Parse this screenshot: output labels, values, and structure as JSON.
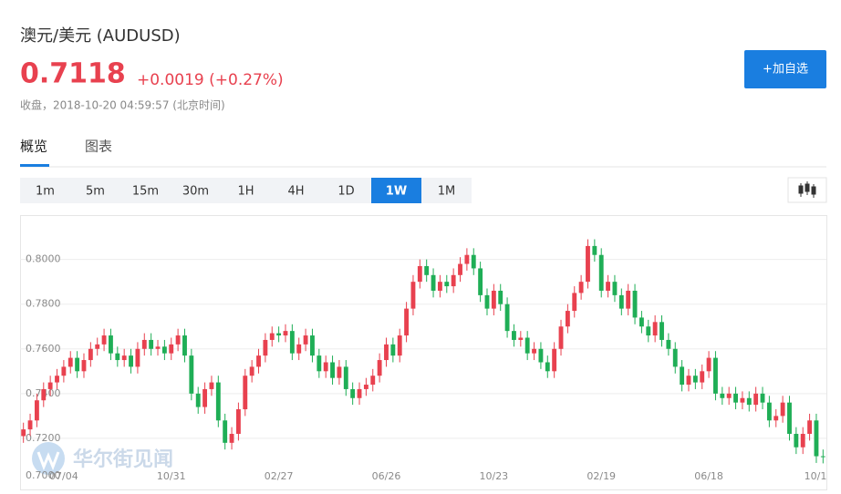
{
  "header": {
    "title": "澳元/美元 (AUDUSD)",
    "price": "0.7118",
    "change": "+0.0019 (+0.27%)",
    "status": "收盘，2018-10-20 04:59:57 (北京时间)",
    "watch_button": "+加自选"
  },
  "tabs": [
    "概览",
    "图表"
  ],
  "active_tab": 0,
  "intervals": [
    "1m",
    "5m",
    "15m",
    "30m",
    "1H",
    "4H",
    "1D",
    "1W",
    "1M"
  ],
  "active_interval": 7,
  "chart_data": {
    "type": "candlestick",
    "watermark": "华尔街见闻",
    "categories": [
      null,
      null,
      null,
      null,
      null,
      null,
      "07/04",
      null,
      null,
      null,
      null,
      null,
      null,
      null,
      null,
      null,
      null,
      null,
      null,
      null,
      null,
      null,
      "10/31",
      null,
      null,
      null,
      null,
      null,
      null,
      null,
      null,
      null,
      null,
      null,
      null,
      null,
      null,
      null,
      "02/27",
      null,
      null,
      null,
      null,
      null,
      null,
      null,
      null,
      null,
      null,
      null,
      null,
      null,
      null,
      null,
      "06/26",
      null,
      null,
      null,
      null,
      null,
      null,
      null,
      null,
      null,
      null,
      null,
      null,
      null,
      null,
      null,
      "10/23",
      null,
      null,
      null,
      null,
      null,
      null,
      null,
      null,
      null,
      null,
      null,
      null,
      null,
      null,
      null,
      "02/19",
      null,
      null,
      null,
      null,
      null,
      null,
      null,
      null,
      null,
      null,
      null,
      null,
      null,
      null,
      null,
      "06/18",
      null,
      null,
      null,
      null,
      null,
      null,
      null,
      null,
      null,
      null,
      null,
      null,
      null,
      null,
      null,
      "10/1",
      null
    ],
    "open": [
      0.721,
      0.724,
      0.728,
      0.737,
      0.742,
      0.745,
      0.748,
      0.752,
      0.756,
      0.75,
      0.755,
      0.76,
      0.762,
      0.766,
      0.758,
      0.755,
      0.757,
      0.752,
      0.76,
      0.764,
      0.76,
      0.761,
      0.758,
      0.762,
      0.766,
      0.757,
      0.74,
      0.734,
      0.742,
      0.745,
      0.728,
      0.718,
      0.722,
      0.733,
      0.748,
      0.752,
      0.757,
      0.764,
      0.767,
      0.766,
      0.768,
      0.758,
      0.762,
      0.766,
      0.757,
      0.75,
      0.754,
      0.747,
      0.752,
      0.742,
      0.738,
      0.742,
      0.744,
      0.748,
      0.755,
      0.762,
      0.757,
      0.766,
      0.778,
      0.79,
      0.797,
      0.793,
      0.786,
      0.79,
      0.788,
      0.793,
      0.798,
      0.802,
      0.796,
      0.784,
      0.778,
      0.786,
      0.78,
      0.768,
      0.764,
      0.765,
      0.758,
      0.76,
      0.754,
      0.75,
      0.76,
      0.77,
      0.777,
      0.785,
      0.79,
      0.806,
      0.802,
      0.786,
      0.79,
      0.784,
      0.778,
      0.786,
      0.774,
      0.77,
      0.766,
      0.772,
      0.764,
      0.76,
      0.752,
      0.744,
      0.748,
      0.745,
      0.75,
      0.756,
      0.74,
      0.738,
      0.74,
      0.736,
      0.738,
      0.735,
      0.74,
      0.736,
      0.728,
      0.73,
      0.736,
      0.722,
      0.716,
      0.722,
      0.728,
      0.712
    ],
    "high": [
      0.727,
      0.731,
      0.74,
      0.745,
      0.748,
      0.751,
      0.755,
      0.759,
      0.759,
      0.758,
      0.763,
      0.765,
      0.769,
      0.769,
      0.761,
      0.76,
      0.76,
      0.763,
      0.767,
      0.767,
      0.764,
      0.764,
      0.765,
      0.769,
      0.769,
      0.76,
      0.743,
      0.745,
      0.748,
      0.748,
      0.731,
      0.725,
      0.736,
      0.751,
      0.755,
      0.76,
      0.767,
      0.77,
      0.77,
      0.771,
      0.771,
      0.765,
      0.769,
      0.769,
      0.76,
      0.757,
      0.757,
      0.755,
      0.755,
      0.745,
      0.745,
      0.747,
      0.751,
      0.758,
      0.765,
      0.765,
      0.769,
      0.781,
      0.793,
      0.8,
      0.8,
      0.796,
      0.793,
      0.793,
      0.796,
      0.801,
      0.805,
      0.805,
      0.799,
      0.787,
      0.789,
      0.789,
      0.783,
      0.771,
      0.768,
      0.768,
      0.763,
      0.763,
      0.757,
      0.763,
      0.773,
      0.78,
      0.788,
      0.793,
      0.809,
      0.809,
      0.805,
      0.793,
      0.793,
      0.787,
      0.789,
      0.789,
      0.777,
      0.773,
      0.775,
      0.775,
      0.767,
      0.763,
      0.755,
      0.751,
      0.751,
      0.753,
      0.759,
      0.759,
      0.743,
      0.743,
      0.743,
      0.741,
      0.741,
      0.743,
      0.743,
      0.739,
      0.733,
      0.739,
      0.739,
      0.725,
      0.725,
      0.731,
      0.731,
      0.715
    ],
    "low": [
      0.718,
      0.721,
      0.725,
      0.734,
      0.739,
      0.742,
      0.745,
      0.749,
      0.747,
      0.747,
      0.752,
      0.757,
      0.759,
      0.755,
      0.752,
      0.752,
      0.749,
      0.749,
      0.757,
      0.757,
      0.757,
      0.755,
      0.755,
      0.759,
      0.754,
      0.737,
      0.731,
      0.731,
      0.739,
      0.725,
      0.715,
      0.715,
      0.719,
      0.73,
      0.745,
      0.749,
      0.754,
      0.761,
      0.763,
      0.763,
      0.755,
      0.755,
      0.759,
      0.754,
      0.747,
      0.747,
      0.744,
      0.744,
      0.739,
      0.735,
      0.735,
      0.739,
      0.741,
      0.745,
      0.752,
      0.754,
      0.754,
      0.763,
      0.775,
      0.787,
      0.79,
      0.783,
      0.783,
      0.785,
      0.785,
      0.79,
      0.795,
      0.793,
      0.781,
      0.775,
      0.775,
      0.777,
      0.765,
      0.761,
      0.761,
      0.755,
      0.755,
      0.751,
      0.747,
      0.747,
      0.757,
      0.767,
      0.774,
      0.782,
      0.787,
      0.799,
      0.783,
      0.783,
      0.781,
      0.775,
      0.775,
      0.771,
      0.767,
      0.763,
      0.763,
      0.761,
      0.757,
      0.749,
      0.741,
      0.741,
      0.742,
      0.742,
      0.747,
      0.737,
      0.735,
      0.735,
      0.733,
      0.733,
      0.732,
      0.732,
      0.733,
      0.725,
      0.725,
      0.727,
      0.719,
      0.713,
      0.713,
      0.719,
      0.709,
      0.7088
    ],
    "close": [
      0.724,
      0.728,
      0.737,
      0.742,
      0.745,
      0.748,
      0.752,
      0.756,
      0.75,
      0.755,
      0.76,
      0.762,
      0.766,
      0.758,
      0.755,
      0.757,
      0.752,
      0.76,
      0.764,
      0.76,
      0.761,
      0.758,
      0.762,
      0.766,
      0.757,
      0.74,
      0.734,
      0.742,
      0.745,
      0.728,
      0.718,
      0.722,
      0.733,
      0.748,
      0.752,
      0.757,
      0.764,
      0.767,
      0.766,
      0.768,
      0.758,
      0.762,
      0.766,
      0.757,
      0.75,
      0.754,
      0.747,
      0.752,
      0.742,
      0.738,
      0.742,
      0.744,
      0.748,
      0.755,
      0.762,
      0.757,
      0.766,
      0.778,
      0.79,
      0.797,
      0.793,
      0.786,
      0.79,
      0.788,
      0.793,
      0.798,
      0.802,
      0.796,
      0.784,
      0.778,
      0.786,
      0.78,
      0.768,
      0.764,
      0.765,
      0.758,
      0.76,
      0.754,
      0.75,
      0.76,
      0.77,
      0.777,
      0.785,
      0.79,
      0.806,
      0.802,
      0.786,
      0.79,
      0.784,
      0.778,
      0.786,
      0.774,
      0.77,
      0.766,
      0.772,
      0.764,
      0.76,
      0.752,
      0.744,
      0.748,
      0.745,
      0.75,
      0.756,
      0.74,
      0.738,
      0.74,
      0.736,
      0.738,
      0.735,
      0.74,
      0.736,
      0.728,
      0.73,
      0.736,
      0.722,
      0.716,
      0.722,
      0.728,
      0.712,
      0.7118
    ],
    "up_color": "#e8414f",
    "down_color": "#1fae56",
    "ylim": [
      0.7,
      0.819
    ],
    "yticks": [
      {
        "value": 0.7,
        "label": "0.7000"
      },
      {
        "value": 0.72,
        "label": "0.7200"
      },
      {
        "value": 0.74,
        "label": "0.7400"
      },
      {
        "value": 0.76,
        "label": "0.7600"
      },
      {
        "value": 0.78,
        "label": "0.7800"
      },
      {
        "value": 0.8,
        "label": "0.8000"
      }
    ],
    "grid": true
  }
}
